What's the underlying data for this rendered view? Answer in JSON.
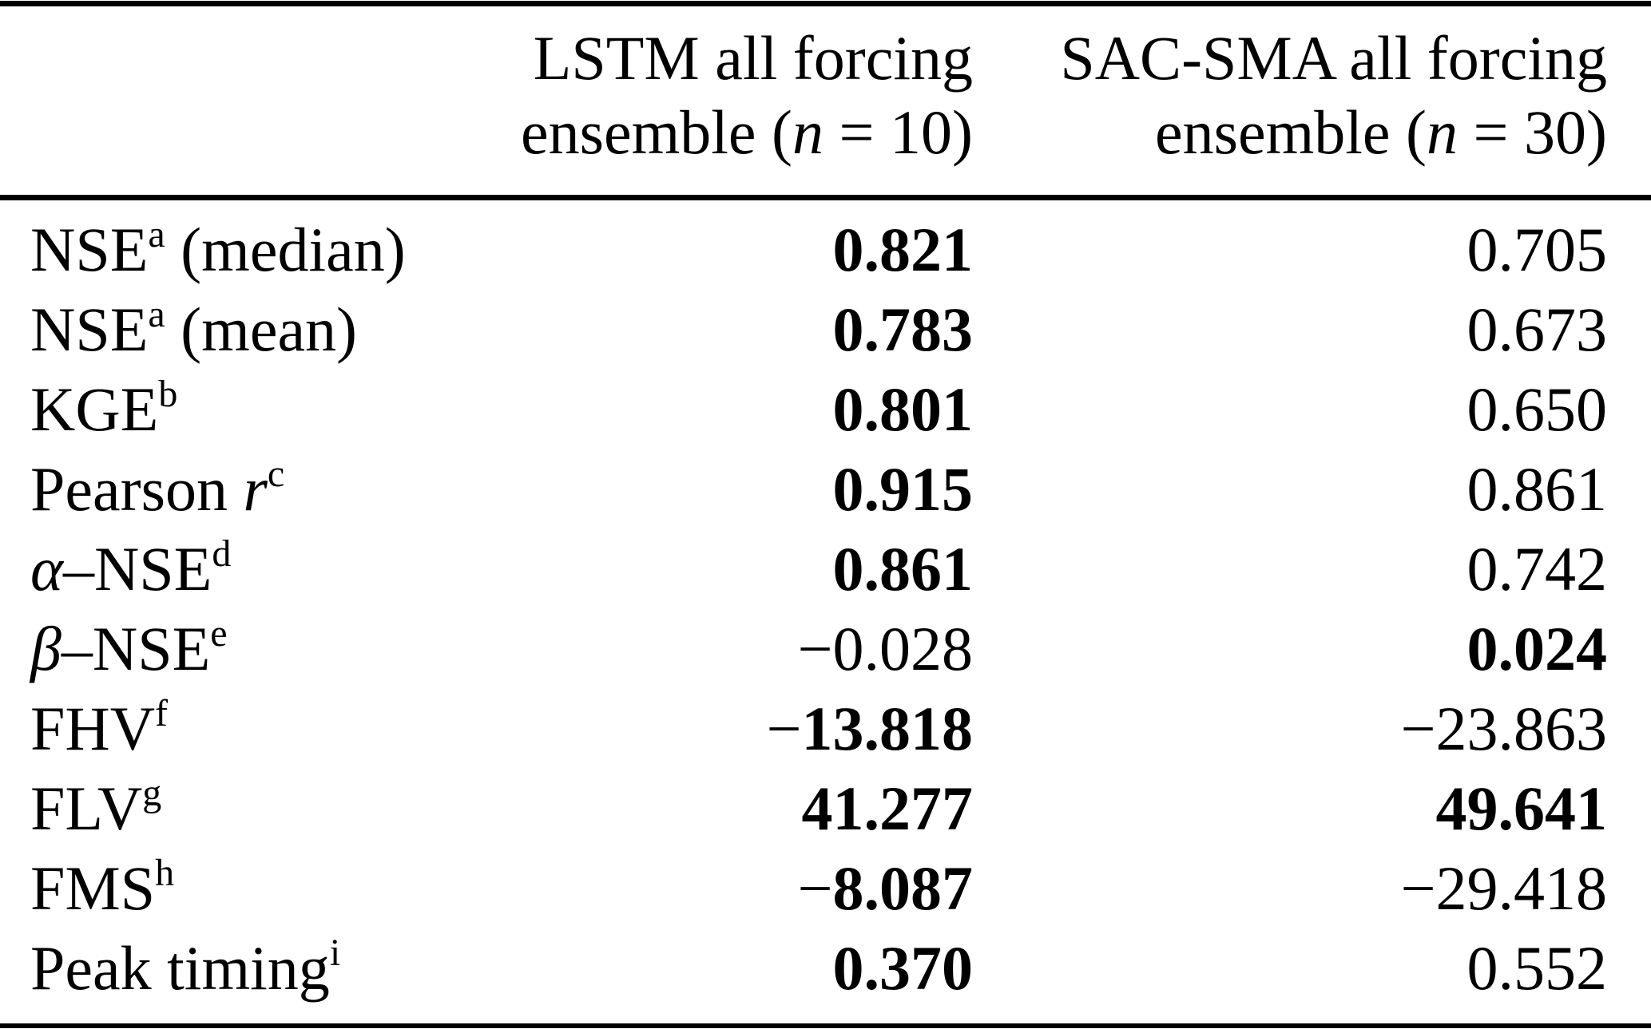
{
  "meta": {
    "description": "Benchmark metrics table comparing model ensembles",
    "text_color": "#000000",
    "background_color": "#ffffff"
  },
  "header": {
    "lstm": {
      "line1": "LSTM all forcing",
      "line2_pre": "ensemble (",
      "line2_var": "n",
      "line2_post": " = 10)"
    },
    "sacsma": {
      "line1": "SAC-SMA all forcing",
      "line2_pre": "ensemble (",
      "line2_var": "n",
      "line2_post": " = 30)"
    }
  },
  "rows": [
    {
      "label": {
        "pre": "NSE",
        "sup": "a",
        "post": " (median)"
      },
      "lstm": {
        "text": "0.821",
        "bold": true
      },
      "sacsma": {
        "text": "0.705",
        "bold": false
      }
    },
    {
      "label": {
        "pre": "NSE",
        "sup": "a",
        "post": " (mean)"
      },
      "lstm": {
        "text": "0.783",
        "bold": true
      },
      "sacsma": {
        "text": "0.673",
        "bold": false
      }
    },
    {
      "label": {
        "pre": "KGE",
        "sup": "b"
      },
      "lstm": {
        "text": "0.801",
        "bold": true
      },
      "sacsma": {
        "text": "0.650",
        "bold": false
      }
    },
    {
      "label": {
        "pre": "Pearson ",
        "it": "r",
        "sup": "c"
      },
      "lstm": {
        "text": "0.915",
        "bold": true
      },
      "sacsma": {
        "text": "0.861",
        "bold": false
      }
    },
    {
      "label": {
        "it": "α",
        "mid": "–NSE",
        "sup": "d"
      },
      "lstm": {
        "text": "0.861",
        "bold": true
      },
      "sacsma": {
        "text": "0.742",
        "bold": false
      }
    },
    {
      "label": {
        "it": "β",
        "mid": "–NSE",
        "sup": "e"
      },
      "lstm": {
        "text": "−0.028",
        "bold": false
      },
      "sacsma": {
        "text": "0.024",
        "bold": true
      }
    },
    {
      "label": {
        "pre": "FHV",
        "sup": "f"
      },
      "lstm": {
        "text": "−13.818",
        "bold": true
      },
      "sacsma": {
        "text": "−23.863",
        "bold": false
      }
    },
    {
      "label": {
        "pre": "FLV",
        "sup": "g"
      },
      "lstm": {
        "text": "41.277",
        "bold": true
      },
      "sacsma": {
        "text": "49.641",
        "bold": true
      }
    },
    {
      "label": {
        "pre": "FMS",
        "sup": "h"
      },
      "lstm": {
        "text": "−8.087",
        "bold": true
      },
      "sacsma": {
        "text": "−29.418",
        "bold": false
      }
    },
    {
      "label": {
        "pre": "Peak timing",
        "sup": "i"
      },
      "lstm": {
        "text": "0.370",
        "bold": true
      },
      "sacsma": {
        "text": "0.552",
        "bold": false
      }
    }
  ]
}
